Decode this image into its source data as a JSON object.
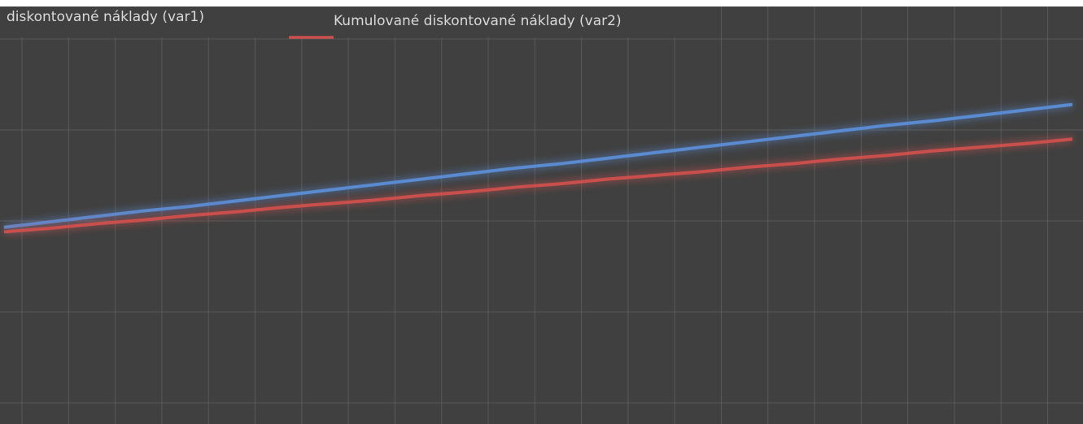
{
  "chart_data": {
    "type": "line",
    "categories": [
      null,
      null,
      null,
      null,
      null,
      null,
      null,
      null,
      null,
      null,
      null,
      null,
      null,
      null,
      null,
      null,
      null,
      null,
      null,
      null,
      null,
      null,
      null,
      null
    ],
    "series": [
      {
        "name": "diskontované náklady (var1)",
        "color": "#5a8ad0",
        "values": [
          1.93,
          1.99,
          2.05,
          2.11,
          2.16,
          2.22,
          2.28,
          2.34,
          2.4,
          2.46,
          2.52,
          2.58,
          2.63,
          2.69,
          2.75,
          2.81,
          2.87,
          2.93,
          2.99,
          3.05,
          3.1,
          3.16,
          3.22,
          3.28
        ]
      },
      {
        "name": "Kumulované diskontované náklady (var2)",
        "color": "#c9504d",
        "values": [
          1.88,
          1.92,
          1.97,
          2.01,
          2.06,
          2.1,
          2.15,
          2.19,
          2.23,
          2.28,
          2.32,
          2.37,
          2.41,
          2.46,
          2.5,
          2.54,
          2.59,
          2.63,
          2.68,
          2.72,
          2.77,
          2.81,
          2.85,
          2.9
        ]
      }
    ],
    "ylim": [
      0,
      4
    ]
  }
}
